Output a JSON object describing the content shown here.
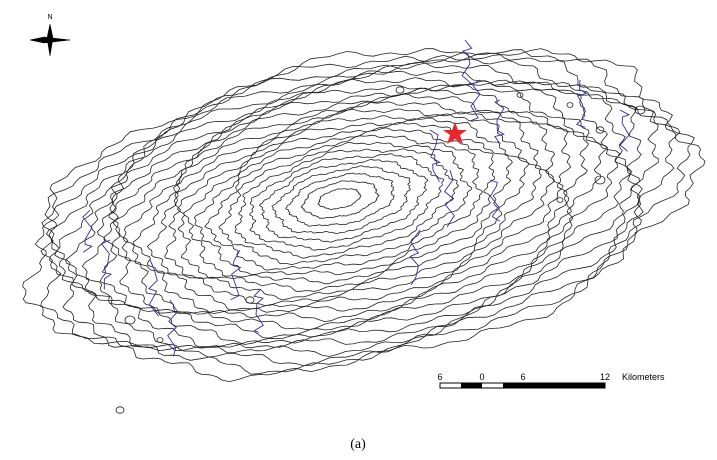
{
  "north_label": "N",
  "scale_bar": {
    "labels": [
      "6",
      "0",
      "6",
      "12"
    ],
    "unit": "Kilometers"
  },
  "caption": "(a)"
}
